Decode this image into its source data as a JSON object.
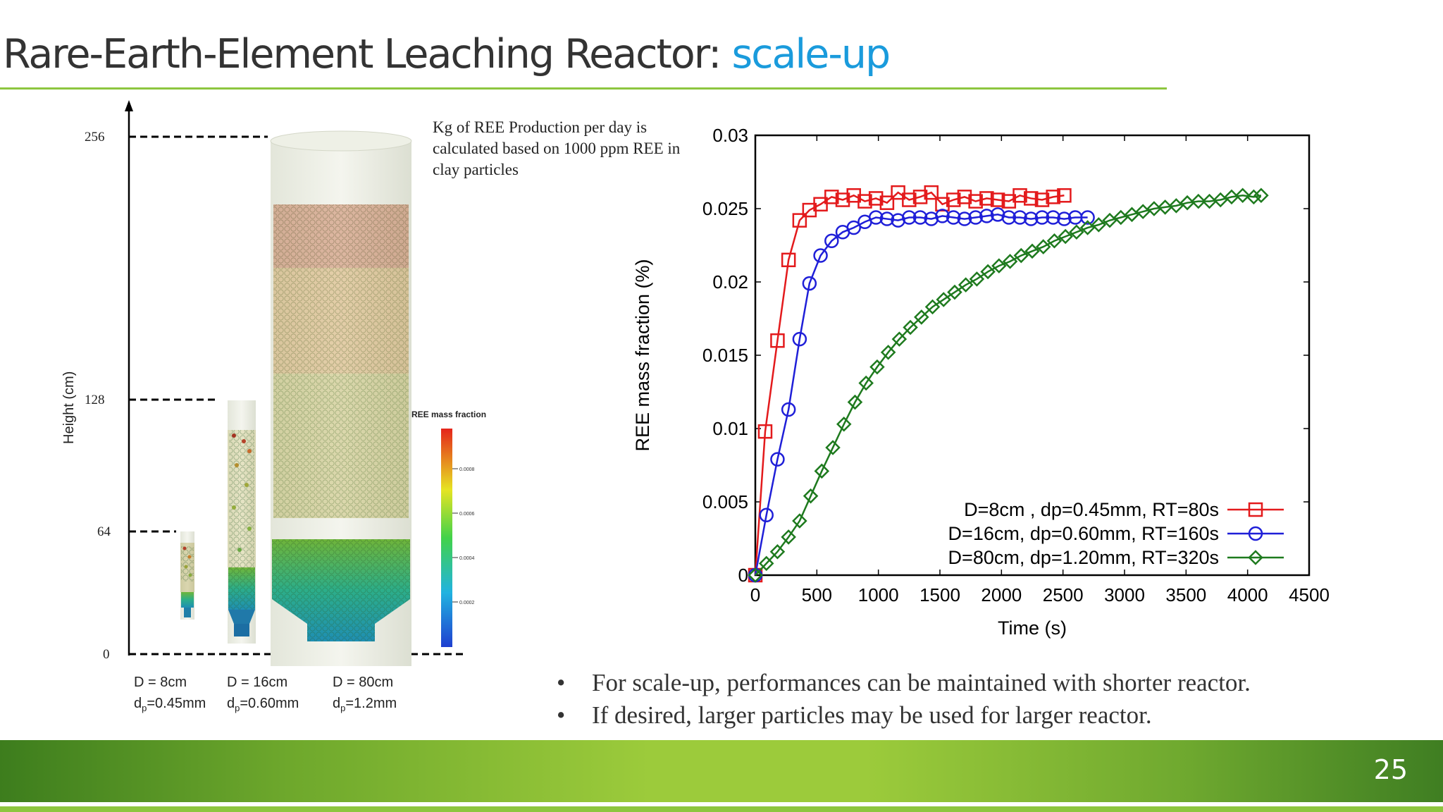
{
  "slide": {
    "title_main": "Rare-Earth-Element Leaching Reactor: ",
    "title_accent": "scale-up",
    "page_number": "25",
    "accent_color": "#1a9bdc",
    "green_color": "#8dc63f"
  },
  "reactor_figure": {
    "y_axis_label": "Height (cm)",
    "y_ticks": [
      "256",
      "128",
      "64",
      "0"
    ],
    "colorbar_title": "REE mass fraction",
    "colorbar_ticks": [
      "0.0008",
      "0.0006",
      "0.0004",
      "0.0002"
    ],
    "reactors": [
      {
        "d_label": "D = 8cm",
        "dp_prefix": "d",
        "dp_sub": "p",
        "dp_value": "=0.45mm"
      },
      {
        "d_label": "D = 16cm",
        "dp_prefix": "d",
        "dp_sub": "p",
        "dp_value": "=0.60mm"
      },
      {
        "d_label": "D = 80cm",
        "dp_prefix": "d",
        "dp_sub": "p",
        "dp_value": "=1.2mm"
      }
    ]
  },
  "note": "Kg of REE Production per day is calculated based on 1000 ppm REE in clay particles",
  "chart_data": {
    "type": "line",
    "xlabel": "Time (s)",
    "ylabel": "REE mass fraction (%)",
    "xlim": [
      0,
      4500
    ],
    "ylim": [
      0,
      0.03
    ],
    "x_ticks": [
      "0",
      "500",
      "1000",
      "1500",
      "2000",
      "2500",
      "3000",
      "3500",
      "4000",
      "4500"
    ],
    "y_ticks": [
      "0",
      "0.005",
      "0.01",
      "0.015",
      "0.02",
      "0.025",
      "0.03"
    ],
    "legend_position": "bottom-right",
    "series": [
      {
        "name": "D=8cm , dp=0.45mm, RT=80s",
        "color": "#e31a1c",
        "marker": "square",
        "x": [
          0,
          80,
          180,
          270,
          360,
          440,
          530,
          620,
          710,
          800,
          890,
          980,
          1070,
          1160,
          1250,
          1340,
          1430,
          1520,
          1610,
          1700,
          1790,
          1880,
          1970,
          2060,
          2150,
          2240,
          2330,
          2420,
          2510
        ],
        "y": [
          0,
          0.0098,
          0.016,
          0.0215,
          0.0242,
          0.0249,
          0.0253,
          0.0258,
          0.0256,
          0.0259,
          0.0255,
          0.0257,
          0.0254,
          0.0261,
          0.0256,
          0.0258,
          0.0261,
          0.0253,
          0.0256,
          0.0258,
          0.0255,
          0.0257,
          0.0256,
          0.0255,
          0.0259,
          0.0257,
          0.0256,
          0.0258,
          0.0259
        ]
      },
      {
        "name": "D=16cm, dp=0.60mm, RT=160s",
        "color": "#1f1fd8",
        "marker": "circle",
        "x": [
          0,
          90,
          180,
          270,
          360,
          440,
          530,
          620,
          710,
          800,
          890,
          980,
          1070,
          1160,
          1250,
          1340,
          1430,
          1520,
          1610,
          1700,
          1790,
          1880,
          1970,
          2060,
          2150,
          2240,
          2330,
          2420,
          2510,
          2600,
          2700
        ],
        "y": [
          0,
          0.0041,
          0.0079,
          0.0113,
          0.0161,
          0.0199,
          0.0218,
          0.0228,
          0.0234,
          0.0237,
          0.0241,
          0.0244,
          0.0243,
          0.0242,
          0.0244,
          0.0244,
          0.0243,
          0.0245,
          0.0244,
          0.0243,
          0.0244,
          0.0245,
          0.0246,
          0.0244,
          0.0244,
          0.0243,
          0.0244,
          0.0244,
          0.0243,
          0.0244,
          0.0244
        ]
      },
      {
        "name": "D=80cm, dp=1.20mm, RT=320s",
        "color": "#1e7a1e",
        "marker": "diamond",
        "x": [
          0,
          90,
          180,
          270,
          360,
          450,
          540,
          630,
          720,
          810,
          900,
          990,
          1080,
          1170,
          1260,
          1350,
          1440,
          1530,
          1620,
          1710,
          1800,
          1890,
          1980,
          2070,
          2160,
          2250,
          2340,
          2430,
          2520,
          2610,
          2700,
          2790,
          2880,
          2970,
          3060,
          3150,
          3240,
          3330,
          3420,
          3510,
          3600,
          3690,
          3780,
          3870,
          3960,
          4050,
          4110
        ],
        "y": [
          0,
          0.0008,
          0.0016,
          0.0026,
          0.0037,
          0.0054,
          0.0071,
          0.0087,
          0.0103,
          0.0118,
          0.0131,
          0.0142,
          0.0152,
          0.0161,
          0.0169,
          0.0176,
          0.0183,
          0.0188,
          0.0193,
          0.0198,
          0.0202,
          0.0207,
          0.0211,
          0.0214,
          0.0218,
          0.0221,
          0.0224,
          0.0228,
          0.0231,
          0.0234,
          0.0237,
          0.0239,
          0.0242,
          0.0244,
          0.0246,
          0.0248,
          0.025,
          0.0251,
          0.0252,
          0.0254,
          0.0255,
          0.0255,
          0.0256,
          0.0258,
          0.0259,
          0.0258,
          0.0259
        ]
      }
    ]
  },
  "bullets": [
    "For scale-up, performances can be maintained with shorter reactor.",
    "If desired, larger particles may be used for larger reactor."
  ],
  "bullet_char": "•"
}
